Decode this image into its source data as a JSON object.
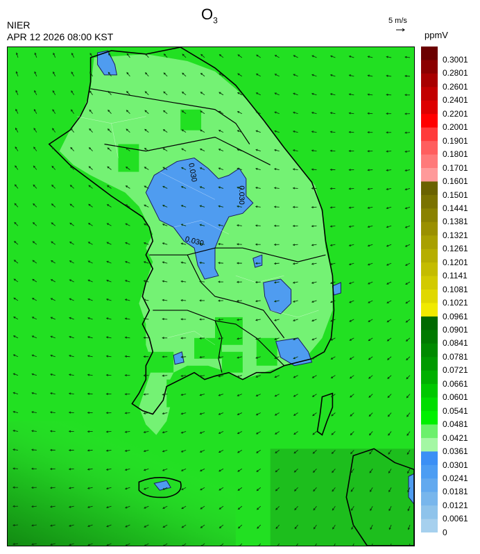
{
  "header": {
    "species": "O",
    "species_sub": "3",
    "agency": "NIER",
    "timestamp": "APR 12 2026 08:00 KST",
    "wind_ref": "5 m/s",
    "unit": "ppmV"
  },
  "contour_labels": [
    "0.030",
    "0.030",
    "0.030"
  ],
  "legend": {
    "labels": [
      "0.3001",
      "0.2801",
      "0.2601",
      "0.2401",
      "0.2201",
      "0.2001",
      "0.1901",
      "0.1801",
      "0.1701",
      "0.1601",
      "0.1501",
      "0.1441",
      "0.1381",
      "0.1321",
      "0.1261",
      "0.1201",
      "0.1141",
      "0.1081",
      "0.1021",
      "0.0961",
      "0.0901",
      "0.0841",
      "0.0781",
      "0.0721",
      "0.0661",
      "0.0601",
      "0.0541",
      "0.0481",
      "0.0421",
      "0.0361",
      "0.0301",
      "0.0241",
      "0.0181",
      "0.0121",
      "0.0061",
      "0"
    ],
    "colors": [
      "#6b0000",
      "#8b0000",
      "#a80000",
      "#c20000",
      "#dd0000",
      "#ff0000",
      "#ff3b3b",
      "#ff5e5e",
      "#ff7a7a",
      "#ff9a9a",
      "#6a6200",
      "#7a7200",
      "#8a8200",
      "#9a9000",
      "#a8a000",
      "#b6ae00",
      "#c4bc00",
      "#d2ca00",
      "#e0d800",
      "#f0ea00",
      "#006a00",
      "#007a00",
      "#008a00",
      "#009a00",
      "#00b000",
      "#00c800",
      "#00dd00",
      "#00f000",
      "#6cf06c",
      "#a4f7a4",
      "#3b8ff5",
      "#4c9df3",
      "#62a9ef",
      "#78b6ec",
      "#8ec3eb",
      "#a6d0ee"
    ]
  }
}
